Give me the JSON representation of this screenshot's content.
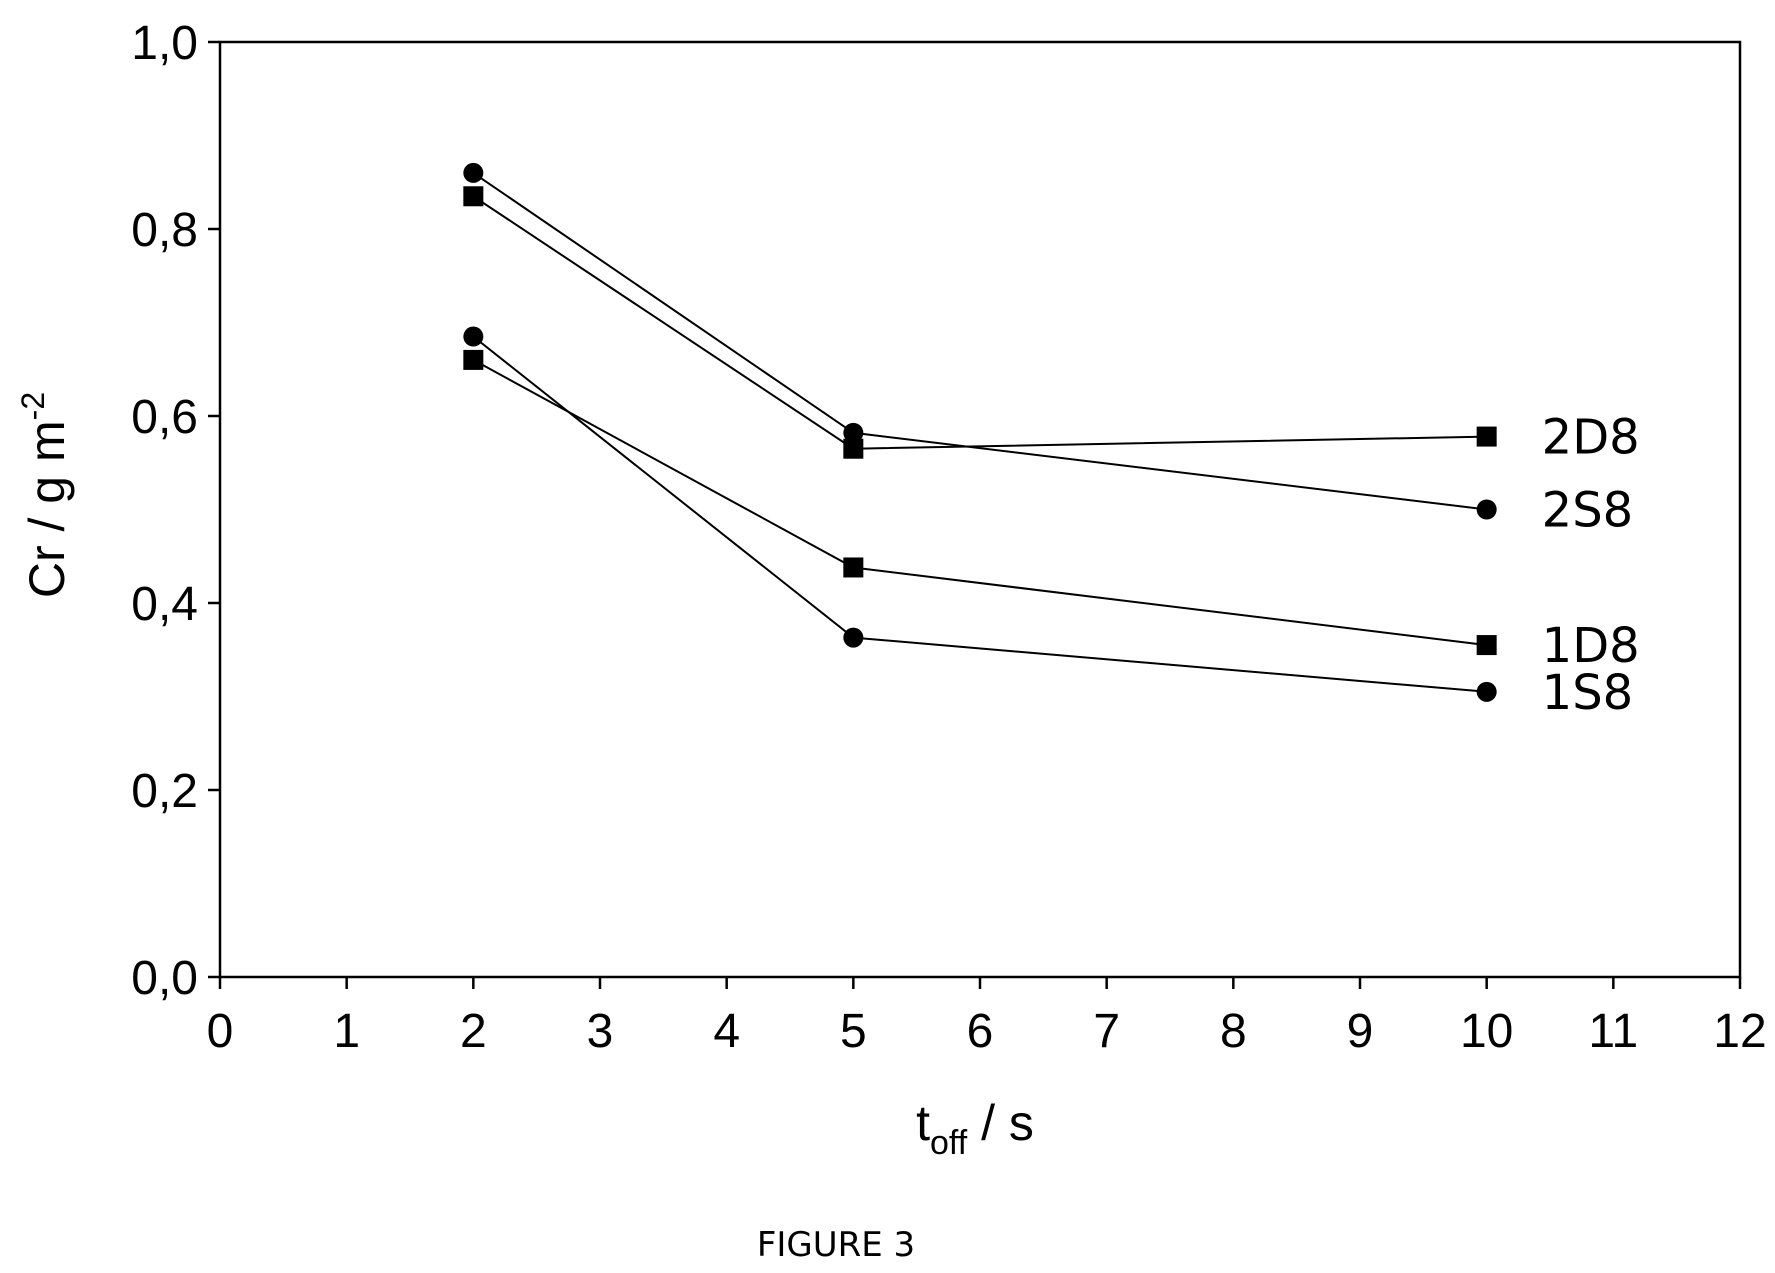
{
  "chart_data": {
    "type": "line",
    "title": "",
    "xlabel": {
      "main": "t",
      "sub": "off",
      "unit": " / s"
    },
    "ylabel": {
      "main": "Cr / g m",
      "sup": "-2"
    },
    "xlim": [
      0,
      12
    ],
    "ylim": [
      0,
      1.0
    ],
    "x_ticks": [
      "0",
      "1",
      "2",
      "3",
      "4",
      "5",
      "6",
      "7",
      "8",
      "9",
      "10",
      "11",
      "12"
    ],
    "y_ticks": [
      "0,0",
      "0,2",
      "0,4",
      "0,6",
      "0,8",
      "1,0"
    ],
    "grid": false,
    "series": [
      {
        "name": "2D8",
        "marker": "square",
        "x": [
          2,
          5,
          10
        ],
        "y": [
          0.835,
          0.565,
          0.578
        ]
      },
      {
        "name": "2S8",
        "marker": "circle",
        "x": [
          2,
          5,
          10
        ],
        "y": [
          0.86,
          0.582,
          0.5
        ]
      },
      {
        "name": "1D8",
        "marker": "square",
        "x": [
          2,
          5,
          10
        ],
        "y": [
          0.66,
          0.438,
          0.355
        ]
      },
      {
        "name": "1S8",
        "marker": "circle",
        "x": [
          2,
          5,
          10
        ],
        "y": [
          0.685,
          0.363,
          0.305
        ]
      }
    ],
    "line_color": "#000000",
    "marker_color": "#000000"
  },
  "caption": "FIGURE 3"
}
